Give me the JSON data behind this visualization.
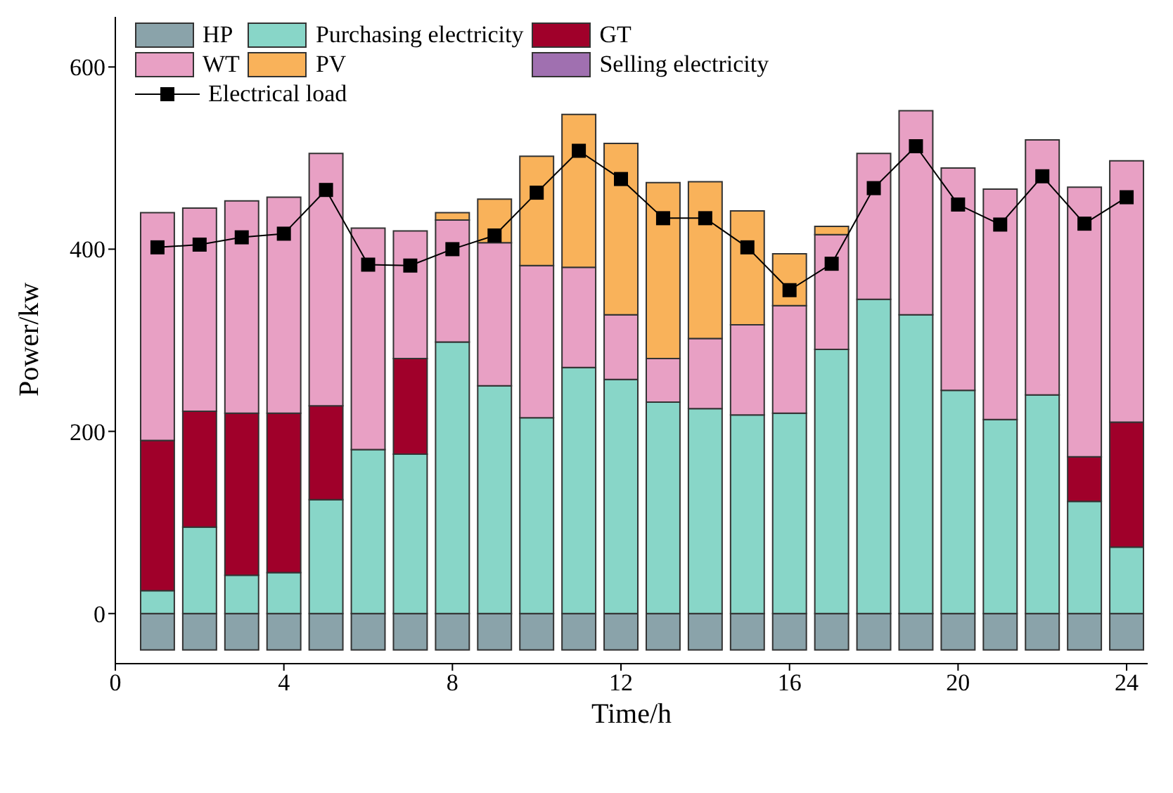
{
  "chart_data": {
    "type": "bar",
    "stacked": true,
    "xlabel": "Time/h",
    "ylabel": "Power/kw",
    "x": [
      1,
      2,
      3,
      4,
      5,
      6,
      7,
      8,
      9,
      10,
      11,
      12,
      13,
      14,
      15,
      16,
      17,
      18,
      19,
      20,
      21,
      22,
      23,
      24
    ],
    "xlim": [
      0,
      24.5
    ],
    "xticks": [
      0,
      4,
      8,
      12,
      16,
      20,
      24
    ],
    "ylim": [
      -55,
      655
    ],
    "yticks": [
      0,
      200,
      400,
      600
    ],
    "legend": "top left",
    "grid": false,
    "series": [
      {
        "name": "HP",
        "color": "#8aa3aa",
        "values": [
          -40,
          -40,
          -40,
          -40,
          -40,
          -40,
          -40,
          -40,
          -40,
          -40,
          -40,
          -40,
          -40,
          -40,
          -40,
          -40,
          -40,
          -40,
          -40,
          -40,
          -40,
          -40,
          -40,
          -40
        ]
      },
      {
        "name": "Purchasing electricity",
        "color": "#88d6c8",
        "values": [
          25,
          95,
          42,
          45,
          125,
          180,
          175,
          298,
          250,
          215,
          270,
          257,
          232,
          225,
          218,
          220,
          290,
          345,
          328,
          245,
          213,
          240,
          123,
          73
        ]
      },
      {
        "name": "GT",
        "color": "#a0002a",
        "values": [
          165,
          127,
          178,
          175,
          103,
          0,
          105,
          0,
          0,
          0,
          0,
          0,
          0,
          0,
          0,
          0,
          0,
          0,
          0,
          0,
          0,
          0,
          49,
          137
        ]
      },
      {
        "name": "WT",
        "color": "#e8a0c4",
        "values": [
          250,
          223,
          233,
          237,
          277,
          243,
          140,
          134,
          157,
          167,
          110,
          71,
          48,
          77,
          99,
          118,
          126,
          160,
          224,
          244,
          253,
          280,
          296,
          287
        ]
      },
      {
        "name": "PV",
        "color": "#f9b25a",
        "values": [
          0,
          0,
          0,
          0,
          0,
          0,
          0,
          8,
          48,
          120,
          168,
          188,
          193,
          172,
          125,
          57,
          9,
          0,
          0,
          0,
          0,
          0,
          0,
          0
        ]
      },
      {
        "name": "Selling electricity",
        "color": "#a070b0",
        "values": [
          0,
          0,
          0,
          0,
          0,
          0,
          0,
          0,
          0,
          0,
          0,
          0,
          0,
          0,
          0,
          0,
          0,
          0,
          0,
          0,
          0,
          0,
          0,
          0
        ]
      },
      {
        "name": "Electrical load",
        "type": "line",
        "color": "#000000",
        "marker": "square",
        "line_style": "solid",
        "values": [
          402,
          405,
          413,
          417,
          465,
          383,
          382,
          400,
          415,
          462,
          508,
          477,
          434,
          434,
          402,
          355,
          384,
          467,
          513,
          449,
          427,
          480,
          428,
          457
        ]
      }
    ]
  }
}
